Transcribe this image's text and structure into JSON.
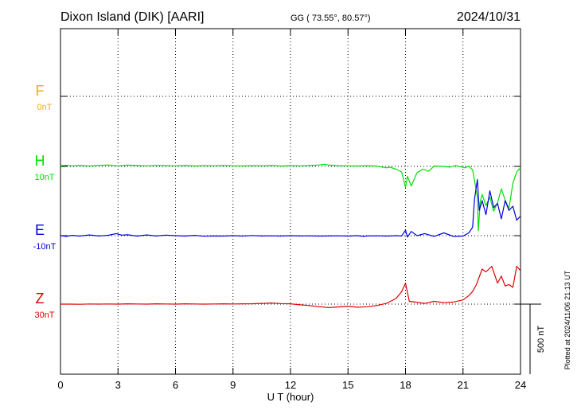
{
  "header": {
    "station": "Dixon Island (DIK)  [AARI]",
    "coords": "GG ( 73.55°,  80.57°)",
    "date": "2024/10/31"
  },
  "footer": {
    "plotted": "Plotted at 2024/11/06 21:13 UT"
  },
  "chart_data": {
    "type": "line",
    "xlabel": "U T (hour)",
    "xlim": [
      0,
      24
    ],
    "xticks": [
      "0",
      "3",
      "6",
      "9",
      "12",
      "15",
      "18",
      "21",
      "24"
    ],
    "grid": true,
    "scale_bar": {
      "label": "500 nT",
      "value_nT": 500
    },
    "series": [
      {
        "name": "F",
        "baseline": "0nT",
        "color": "#f0b000",
        "x": [],
        "y": []
      },
      {
        "name": "H",
        "baseline": "10nT",
        "color": "#00e000",
        "x": [
          0,
          0.3,
          0.6,
          1,
          1.5,
          2,
          2.5,
          3,
          3.5,
          4,
          4.5,
          5,
          5.5,
          6,
          6.5,
          7,
          7.5,
          8,
          8.5,
          9,
          9.5,
          10,
          10.5,
          11,
          11.5,
          12,
          12.5,
          13,
          13.5,
          13.8,
          14,
          14.5,
          15,
          15.5,
          16,
          16.5,
          17,
          17.2,
          17.5,
          17.8,
          18,
          18.1,
          18.3,
          18.6,
          18.9,
          19.2,
          19.5,
          20,
          20.3,
          20.6,
          20.9,
          21.1,
          21.3,
          21.5,
          21.6,
          21.75,
          21.8,
          21.9,
          22,
          22.2,
          22.4,
          22.6,
          22.8,
          23,
          23.2,
          23.4,
          23.6,
          23.8,
          24
        ],
        "y": [
          5,
          8,
          4,
          6,
          3,
          7,
          10,
          3,
          9,
          6,
          4,
          7,
          5,
          4,
          6,
          3,
          5,
          4,
          6,
          4,
          3,
          5,
          4,
          6,
          3,
          5,
          4,
          6,
          10,
          15,
          9,
          5,
          4,
          3,
          5,
          2,
          -10,
          -5,
          -20,
          -40,
          -150,
          -70,
          -140,
          -45,
          -20,
          -35,
          3,
          0,
          -5,
          5,
          -3,
          -10,
          2,
          -25,
          -100,
          -220,
          -460,
          -250,
          -200,
          -280,
          -220,
          -320,
          -260,
          -160,
          -240,
          -300,
          -120,
          -40,
          -10
        ]
      },
      {
        "name": "E",
        "baseline": "-10nT",
        "color": "#0000e0",
        "x": [
          0,
          0.3,
          0.6,
          1,
          1.5,
          2,
          2.5,
          2.9,
          3.2,
          3.5,
          4,
          4.5,
          5,
          5.5,
          6,
          6.5,
          7,
          7.5,
          8,
          8.5,
          9,
          9.5,
          10,
          10.5,
          11,
          11.5,
          12,
          12.5,
          13,
          13.5,
          14,
          14.5,
          15,
          15.5,
          15.8,
          16,
          16.5,
          17,
          17.5,
          17.8,
          18,
          18.1,
          18.3,
          18.6,
          19,
          19.5,
          20,
          20.5,
          21,
          21.3,
          21.5,
          21.6,
          21.75,
          21.85,
          22,
          22.2,
          22.4,
          22.6,
          22.8,
          23,
          23.2,
          23.4,
          23.6,
          23.8,
          24
        ],
        "y": [
          0,
          -5,
          2,
          -3,
          5,
          -2,
          3,
          15,
          4,
          6,
          -3,
          5,
          -2,
          4,
          0,
          -3,
          2,
          -4,
          -2,
          -3,
          0,
          -3,
          1,
          -2,
          -1,
          -3,
          0,
          -2,
          -1,
          -3,
          -2,
          -1,
          -3,
          0,
          -5,
          -2,
          -1,
          -3,
          0,
          -2,
          40,
          -10,
          30,
          0,
          15,
          -5,
          20,
          -5,
          -3,
          20,
          60,
          260,
          400,
          180,
          250,
          150,
          320,
          200,
          230,
          120,
          250,
          180,
          210,
          110,
          140
        ]
      },
      {
        "name": "Z",
        "baseline": "30nT",
        "color": "#e00000",
        "x": [
          0,
          0.5,
          1,
          1.5,
          2,
          2.5,
          3,
          3.5,
          4,
          4.5,
          5,
          5.5,
          6,
          6.5,
          7,
          7.5,
          8,
          8.5,
          9,
          9.5,
          10,
          10.5,
          11,
          11.5,
          12,
          12.5,
          13,
          13.5,
          14,
          14.5,
          15,
          15.5,
          16,
          16.5,
          17,
          17.5,
          17.8,
          18,
          18.2,
          18.5,
          19,
          19.5,
          20,
          20.5,
          21,
          21.3,
          21.5,
          21.7,
          22,
          22.2,
          22.5,
          22.8,
          23,
          23.2,
          23.4,
          23.6,
          23.8,
          24
        ],
        "y": [
          0,
          0,
          -1,
          1,
          0,
          1,
          0,
          2,
          1,
          0,
          2,
          1,
          0,
          2,
          1,
          0,
          1,
          2,
          1,
          2,
          3,
          5,
          8,
          4,
          2,
          -5,
          -10,
          -18,
          -25,
          -20,
          -15,
          -22,
          -18,
          -10,
          5,
          40,
          90,
          150,
          20,
          15,
          5,
          20,
          10,
          15,
          30,
          60,
          90,
          140,
          250,
          230,
          270,
          150,
          200,
          130,
          140,
          120,
          270,
          240
        ]
      }
    ]
  }
}
